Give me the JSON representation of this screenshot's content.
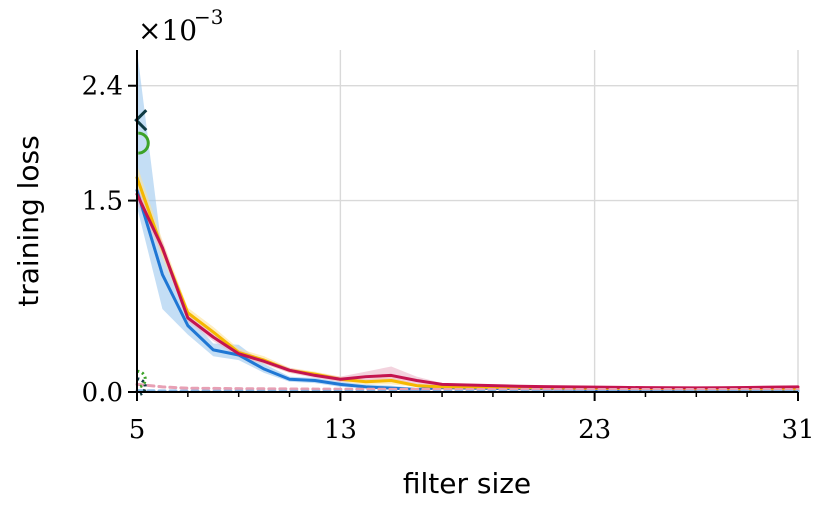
{
  "chart_data": {
    "type": "line",
    "xlabel": "filter size",
    "ylabel": "training loss",
    "y_scale_prefix": "×10",
    "y_scale_exponent": "−3",
    "xlim": [
      5,
      31
    ],
    "ylim": [
      0,
      0.00268
    ],
    "x_ticks": [
      5,
      13,
      23,
      31
    ],
    "x_tick_labels": [
      "5",
      "13",
      "23",
      "31"
    ],
    "x_minor_ticks": [
      7,
      9,
      11,
      15,
      17,
      19,
      21,
      25,
      27,
      29
    ],
    "y_ticks": [
      0.0,
      0.0015,
      0.0024
    ],
    "y_tick_labels": [
      "0.0",
      "1.5",
      "2.4"
    ],
    "grid": true,
    "x": [
      5,
      6,
      7,
      8,
      9,
      10,
      11,
      12,
      13,
      14,
      15,
      16,
      17,
      18,
      19,
      20,
      21,
      22,
      23,
      24,
      25,
      26,
      27,
      28,
      29,
      30,
      31
    ],
    "series": [
      {
        "color": "#1f77d4",
        "band_color": "#9cc8ee",
        "values": [
          0.00158,
          0.00092,
          0.00052,
          0.00033,
          0.00029,
          0.00018,
          0.0001,
          9e-05,
          6e-05,
          4e-05,
          3e-05,
          2e-05,
          3.5e-05,
          3e-05,
          2.8e-05,
          2.6e-05,
          2.4e-05,
          2.2e-05,
          2e-05,
          2e-05,
          2e-05,
          1.8e-05,
          1.8e-05,
          1.8e-05,
          1.8e-05,
          1.6e-05,
          1.6e-05
        ],
        "band_low": [
          0.00145,
          0.00065,
          0.00045,
          0.00028,
          0.00025,
          0.00015,
          8e-05,
          7e-05,
          4e-05,
          3e-05,
          2e-05,
          1e-05,
          2e-05,
          2e-05,
          2e-05,
          2e-05,
          2e-05,
          2e-05,
          1.5e-05,
          1.5e-05,
          1.5e-05,
          1.2e-05,
          1.2e-05,
          1.2e-05,
          1.2e-05,
          1e-05,
          1e-05
        ],
        "band_high": [
          0.00268,
          0.00108,
          0.0006,
          0.00038,
          0.00037,
          0.00022,
          0.00012,
          0.00011,
          8e-05,
          6e-05,
          5e-05,
          3e-05,
          5e-05,
          4e-05,
          3.6e-05,
          3.2e-05,
          3e-05,
          2.8e-05,
          2.6e-05,
          2.6e-05,
          2.6e-05,
          2.4e-05,
          2.4e-05,
          2.4e-05,
          2.4e-05,
          2.2e-05,
          2.2e-05
        ]
      },
      {
        "color": "#f5b800",
        "band_color": "#fde39a",
        "values": [
          0.00168,
          0.00112,
          0.00062,
          0.00047,
          0.00031,
          0.00025,
          0.00017,
          0.00014,
          0.0001,
          8e-05,
          9e-05,
          5e-05,
          4e-05,
          3.8e-05,
          3.6e-05,
          3.4e-05,
          3.2e-05,
          3e-05,
          2.8e-05,
          2.8e-05,
          2.6e-05,
          2.6e-05,
          2.4e-05,
          2.4e-05,
          2.4e-05,
          2.4e-05,
          2.4e-05
        ],
        "band_low": [
          0.00158,
          0.00105,
          0.00058,
          0.00043,
          0.00028,
          0.00022,
          0.00015,
          0.00012,
          8e-05,
          6e-05,
          6e-05,
          4e-05,
          3e-05,
          3e-05,
          3e-05,
          3e-05,
          3e-05,
          2.5e-05,
          2.2e-05,
          2.2e-05,
          2e-05,
          2e-05,
          2e-05,
          2e-05,
          2e-05,
          2e-05,
          2e-05
        ],
        "band_high": [
          0.00178,
          0.00119,
          0.00066,
          0.00051,
          0.00034,
          0.00028,
          0.00019,
          0.00016,
          0.00012,
          0.0001,
          0.00012,
          6e-05,
          5e-05,
          4.6e-05,
          4.4e-05,
          4e-05,
          3.8e-05,
          3.6e-05,
          3.4e-05,
          3.4e-05,
          3.2e-05,
          3.2e-05,
          3e-05,
          3e-05,
          3e-05,
          3e-05,
          3e-05
        ]
      },
      {
        "color": "#c4144f",
        "band_color": "#ebb6c8",
        "values": [
          0.00155,
          0.00113,
          0.00058,
          0.00043,
          0.0003,
          0.00024,
          0.00017,
          0.00013,
          0.0001,
          0.00012,
          0.00013,
          9e-05,
          6e-05,
          5.5e-05,
          5e-05,
          4.5e-05,
          4.2e-05,
          4e-05,
          3.8e-05,
          3.6e-05,
          3.4e-05,
          3.3e-05,
          3.2e-05,
          3.3e-05,
          3.5e-05,
          3.8e-05,
          4e-05
        ],
        "band_low": [
          0.00148,
          0.00108,
          0.00055,
          0.0004,
          0.00027,
          0.00022,
          0.00015,
          0.00011,
          8e-05,
          8e-05,
          9e-05,
          6e-05,
          5e-05,
          4.5e-05,
          4e-05,
          3.8e-05,
          3.5e-05,
          3.3e-05,
          3.2e-05,
          3e-05,
          2.8e-05,
          2.7e-05,
          2.6e-05,
          2.7e-05,
          2.9e-05,
          3.2e-05,
          3.4e-05
        ],
        "band_high": [
          0.00162,
          0.00118,
          0.00061,
          0.00046,
          0.00033,
          0.00026,
          0.00019,
          0.00015,
          0.00012,
          0.00016,
          0.0002,
          0.00012,
          7e-05,
          6.5e-05,
          6e-05,
          5.2e-05,
          4.9e-05,
          4.7e-05,
          4.4e-05,
          4.2e-05,
          4e-05,
          3.9e-05,
          3.8e-05,
          3.9e-05,
          4.1e-05,
          4.4e-05,
          4.6e-05
        ]
      },
      {
        "color": "#e8a0b4",
        "style": "dashed",
        "values": [
          6e-05,
          4e-05,
          3e-05,
          2.8e-05,
          2.6e-05,
          2.5e-05,
          2.4e-05,
          2.3e-05,
          2.2e-05,
          2.2e-05,
          2.1e-05,
          2.1e-05,
          2e-05,
          2e-05,
          2e-05,
          2e-05,
          2e-05,
          2e-05,
          2e-05,
          2e-05,
          2e-05,
          2e-05,
          2e-05,
          2e-05,
          2e-05,
          2e-05,
          2e-05
        ]
      },
      {
        "color": "#7fb3e6",
        "style": "dashed",
        "values": [
          1e-05,
          8e-06,
          7e-06,
          6e-06,
          6e-06,
          5e-06,
          5e-06,
          5e-06,
          5e-06,
          4e-06,
          4e-06,
          4e-06,
          4e-06,
          4e-06,
          4e-06,
          4e-06,
          4e-06,
          4e-06,
          4e-06,
          4e-06,
          4e-06,
          4e-06,
          4e-06,
          4e-06,
          4e-06,
          4e-06,
          4e-06
        ]
      }
    ],
    "markers": [
      {
        "shape": "chevron-left",
        "x": 5.05,
        "y": 0.00213,
        "color": "#0e3b43"
      },
      {
        "shape": "half-circle",
        "x": 5.05,
        "y": 0.00195,
        "color": "#3da329"
      },
      {
        "shape": "dotted-arc",
        "x": 5.05,
        "y": 0.0001,
        "color": "#3da329"
      },
      {
        "shape": "dotted-arc",
        "x": 5.05,
        "y": 4e-05,
        "color": "#0e3b43"
      }
    ]
  }
}
